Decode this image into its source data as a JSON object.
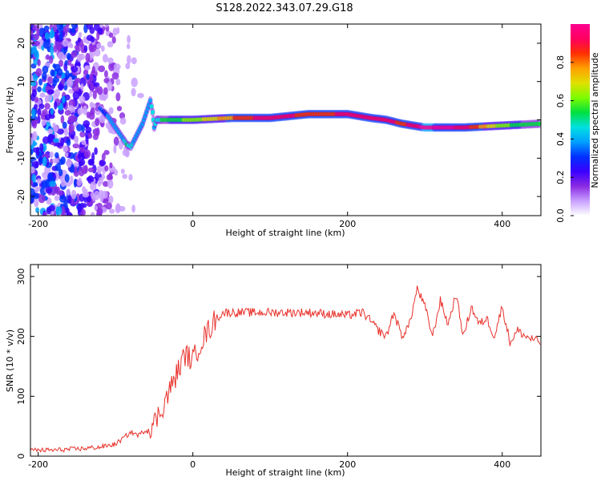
{
  "title": "S128.2022.343.07.29.G18",
  "colors": {
    "snr_line": "#e8322c",
    "colorbar": [
      "#ffffff",
      "#c9a0ff",
      "#8a2be2",
      "#3a00ff",
      "#0030ff",
      "#00a0ff",
      "#00e0e0",
      "#00e040",
      "#7cfc00",
      "#e0e000",
      "#ffa000",
      "#ff3000",
      "#ff0060",
      "#ff0090"
    ]
  },
  "chart_data": [
    {
      "type": "heatmap",
      "xlabel": "Height of straight line (km)",
      "ylabel": "Frequency (Hz)",
      "xlim": [
        -210,
        450
      ],
      "ylim": [
        -25,
        25
      ],
      "xticks": [
        -200,
        0,
        200,
        400
      ],
      "yticks": [
        -20,
        -10,
        0,
        10,
        20
      ],
      "colorbar": {
        "label": "Normalized spectral amplitude",
        "range": [
          0,
          1
        ],
        "ticks": [
          0.0,
          0.2,
          0.4,
          0.6,
          0.8
        ]
      },
      "ridge": {
        "x": [
          -120,
          -110,
          -100,
          -90,
          -85,
          -80,
          -75,
          -70,
          -65,
          -60,
          -55,
          -52,
          -50,
          -47,
          -45,
          -40,
          -30,
          0,
          50,
          100,
          150,
          200,
          230,
          250,
          270,
          300,
          350,
          400,
          450
        ],
        "y": [
          3,
          1,
          -2,
          -5,
          -6.5,
          -7,
          -5,
          -3,
          -1,
          2,
          5,
          2,
          -2,
          0,
          0,
          0,
          0,
          0,
          0.5,
          0.5,
          1.5,
          1.5,
          0.5,
          0,
          -1,
          -2,
          -2,
          -1.5,
          -1
        ],
        "amp": [
          0.3,
          0.35,
          0.35,
          0.4,
          0.5,
          0.45,
          0.4,
          0.35,
          0.35,
          0.35,
          0.4,
          0.45,
          0.4,
          0.45,
          0.45,
          0.5,
          0.55,
          0.6,
          0.8,
          0.95,
          0.85,
          0.9,
          0.95,
          0.95,
          0.85,
          1.0,
          0.95,
          0.6,
          0.5
        ]
      }
    },
    {
      "type": "line",
      "xlabel": "Height of straight line (km)",
      "ylabel": "SNR (10 * v/v)",
      "xlim": [
        -210,
        450
      ],
      "ylim": [
        0,
        320
      ],
      "xticks": [
        -200,
        0,
        200,
        400
      ],
      "yticks": [
        0,
        100,
        200,
        300
      ],
      "series": [
        {
          "x": [
            -210,
            -180,
            -150,
            -120,
            -100,
            -90,
            -80,
            -70,
            -60,
            -50,
            -40,
            -30,
            -20,
            -10,
            0,
            10,
            20,
            30,
            40,
            60,
            100,
            150,
            200,
            220,
            240,
            250,
            260,
            270,
            280,
            290,
            300,
            310,
            320,
            330,
            340,
            350,
            360,
            370,
            380,
            390,
            400,
            410,
            420,
            430,
            450
          ],
          "y": [
            10,
            10,
            12,
            15,
            20,
            30,
            40,
            35,
            45,
            55,
            80,
            110,
            140,
            170,
            160,
            190,
            210,
            230,
            240,
            240,
            240,
            240,
            235,
            240,
            210,
            200,
            240,
            200,
            220,
            280,
            250,
            200,
            260,
            220,
            270,
            200,
            250,
            220,
            230,
            200,
            250,
            190,
            210,
            200,
            190
          ]
        }
      ]
    }
  ]
}
